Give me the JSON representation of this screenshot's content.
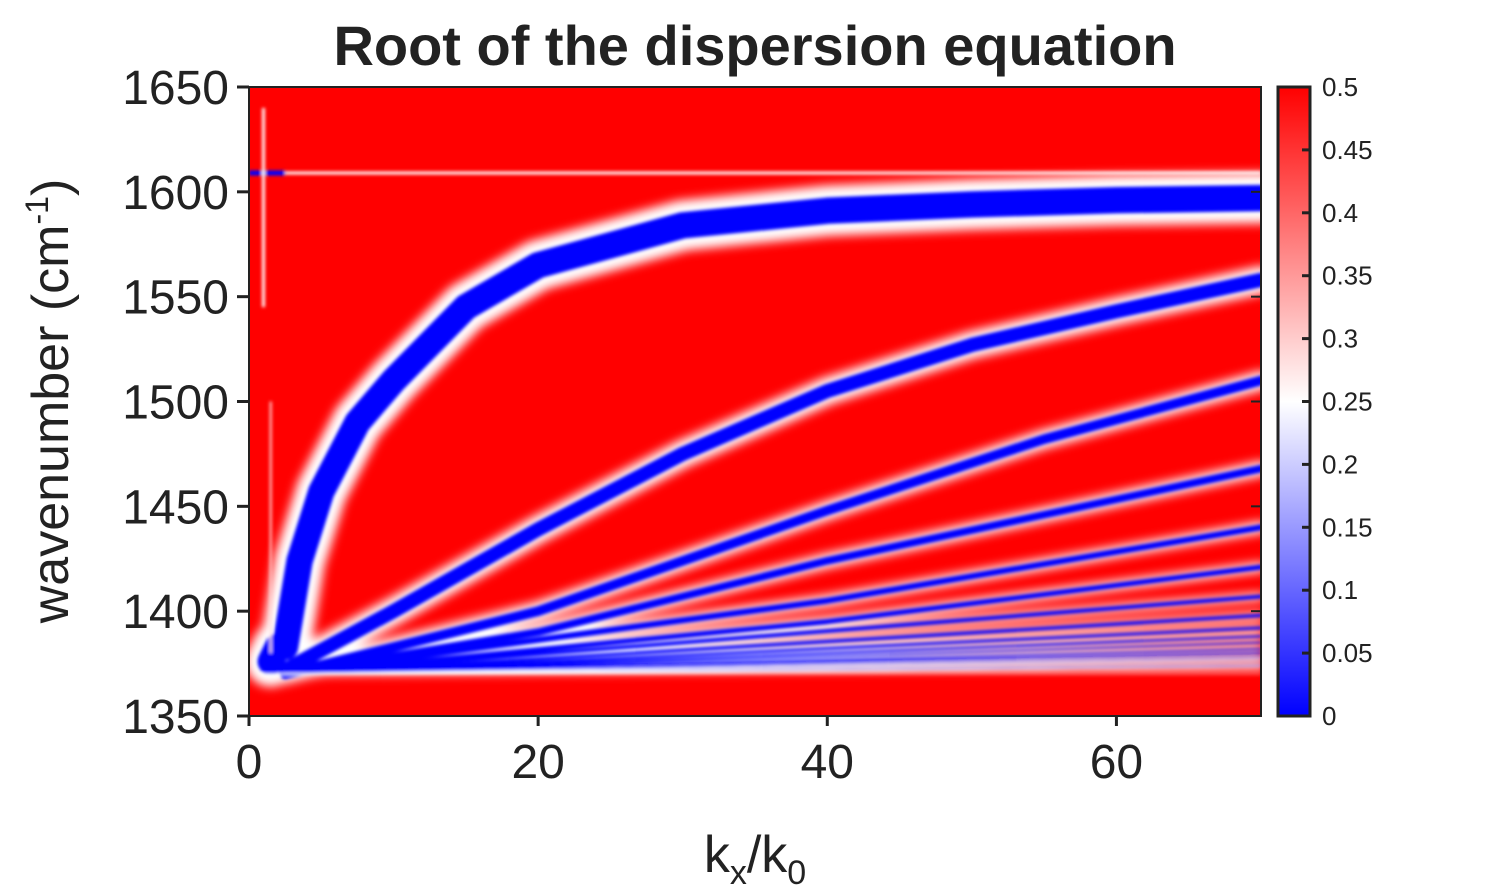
{
  "chart_data": {
    "type": "heatmap",
    "title": "Root of the dispersion equation",
    "xlabel": {
      "base": "k",
      "sub1": "x",
      "slash": "/k",
      "sub2": "0"
    },
    "ylabel": {
      "text": "wavenumber  (cm",
      "sup": "-1",
      "close": ")"
    },
    "xlim": [
      0,
      70
    ],
    "ylim": [
      1350,
      1650
    ],
    "xticks": [
      0,
      20,
      40,
      60
    ],
    "yticks": [
      1350,
      1400,
      1450,
      1500,
      1550,
      1600,
      1650
    ],
    "colorbar": {
      "range": [
        0,
        0.5
      ],
      "ticks": [
        "0",
        "0.05",
        "0.1",
        "0.15",
        "0.2",
        "0.25",
        "0.3",
        "0.35",
        "0.4",
        "0.45",
        "0.5"
      ],
      "colormap": [
        "#0000ff",
        "#ffffff",
        "#ff0000"
      ]
    },
    "background_color": "#ff0000",
    "minimum_color": "#0000ff",
    "flat_mode_wavenumber": 1609,
    "modes": [
      [
        [
          1.5,
          1376
        ],
        [
          2,
          1383
        ],
        [
          2.5,
          1383
        ],
        [
          3.5,
          1424
        ],
        [
          5,
          1457
        ],
        [
          7.5,
          1490
        ],
        [
          10,
          1510
        ],
        [
          15,
          1545
        ],
        [
          20,
          1565
        ],
        [
          30,
          1584
        ],
        [
          40,
          1591
        ],
        [
          50,
          1594
        ],
        [
          60,
          1596
        ],
        [
          70,
          1597
        ]
      ],
      [
        [
          2.5,
          1372
        ],
        [
          10,
          1400
        ],
        [
          20,
          1439
        ],
        [
          30,
          1475
        ],
        [
          40,
          1505
        ],
        [
          50,
          1527
        ],
        [
          60,
          1543
        ],
        [
          70,
          1558
        ]
      ],
      [
        [
          2.5,
          1370
        ],
        [
          20,
          1400
        ],
        [
          40,
          1448
        ],
        [
          55,
          1482
        ],
        [
          70,
          1510
        ]
      ],
      [
        [
          2.5,
          1370
        ],
        [
          20,
          1390
        ],
        [
          40,
          1424
        ],
        [
          70,
          1468
        ]
      ],
      [
        [
          2.5,
          1370
        ],
        [
          40,
          1405
        ],
        [
          70,
          1440
        ]
      ],
      [
        [
          2.5,
          1370
        ],
        [
          40,
          1395
        ],
        [
          70,
          1421
        ]
      ],
      [
        [
          2.5,
          1370
        ],
        [
          70,
          1407
        ]
      ],
      [
        [
          2.5,
          1370
        ],
        [
          70,
          1398
        ]
      ],
      [
        [
          2.5,
          1370
        ],
        [
          70,
          1392
        ]
      ],
      [
        [
          2.5,
          1370
        ],
        [
          70,
          1388
        ]
      ],
      [
        [
          2.5,
          1370
        ],
        [
          70,
          1385
        ]
      ],
      [
        [
          2.5,
          1370
        ],
        [
          70,
          1382
        ]
      ],
      [
        [
          2.5,
          1370
        ],
        [
          70,
          1380
        ]
      ],
      [
        [
          2.5,
          1370
        ],
        [
          70,
          1378
        ]
      ],
      [
        [
          2.5,
          1370
        ],
        [
          70,
          1376
        ]
      ],
      [
        [
          2.5,
          1370
        ],
        [
          70,
          1374
        ]
      ]
    ]
  }
}
